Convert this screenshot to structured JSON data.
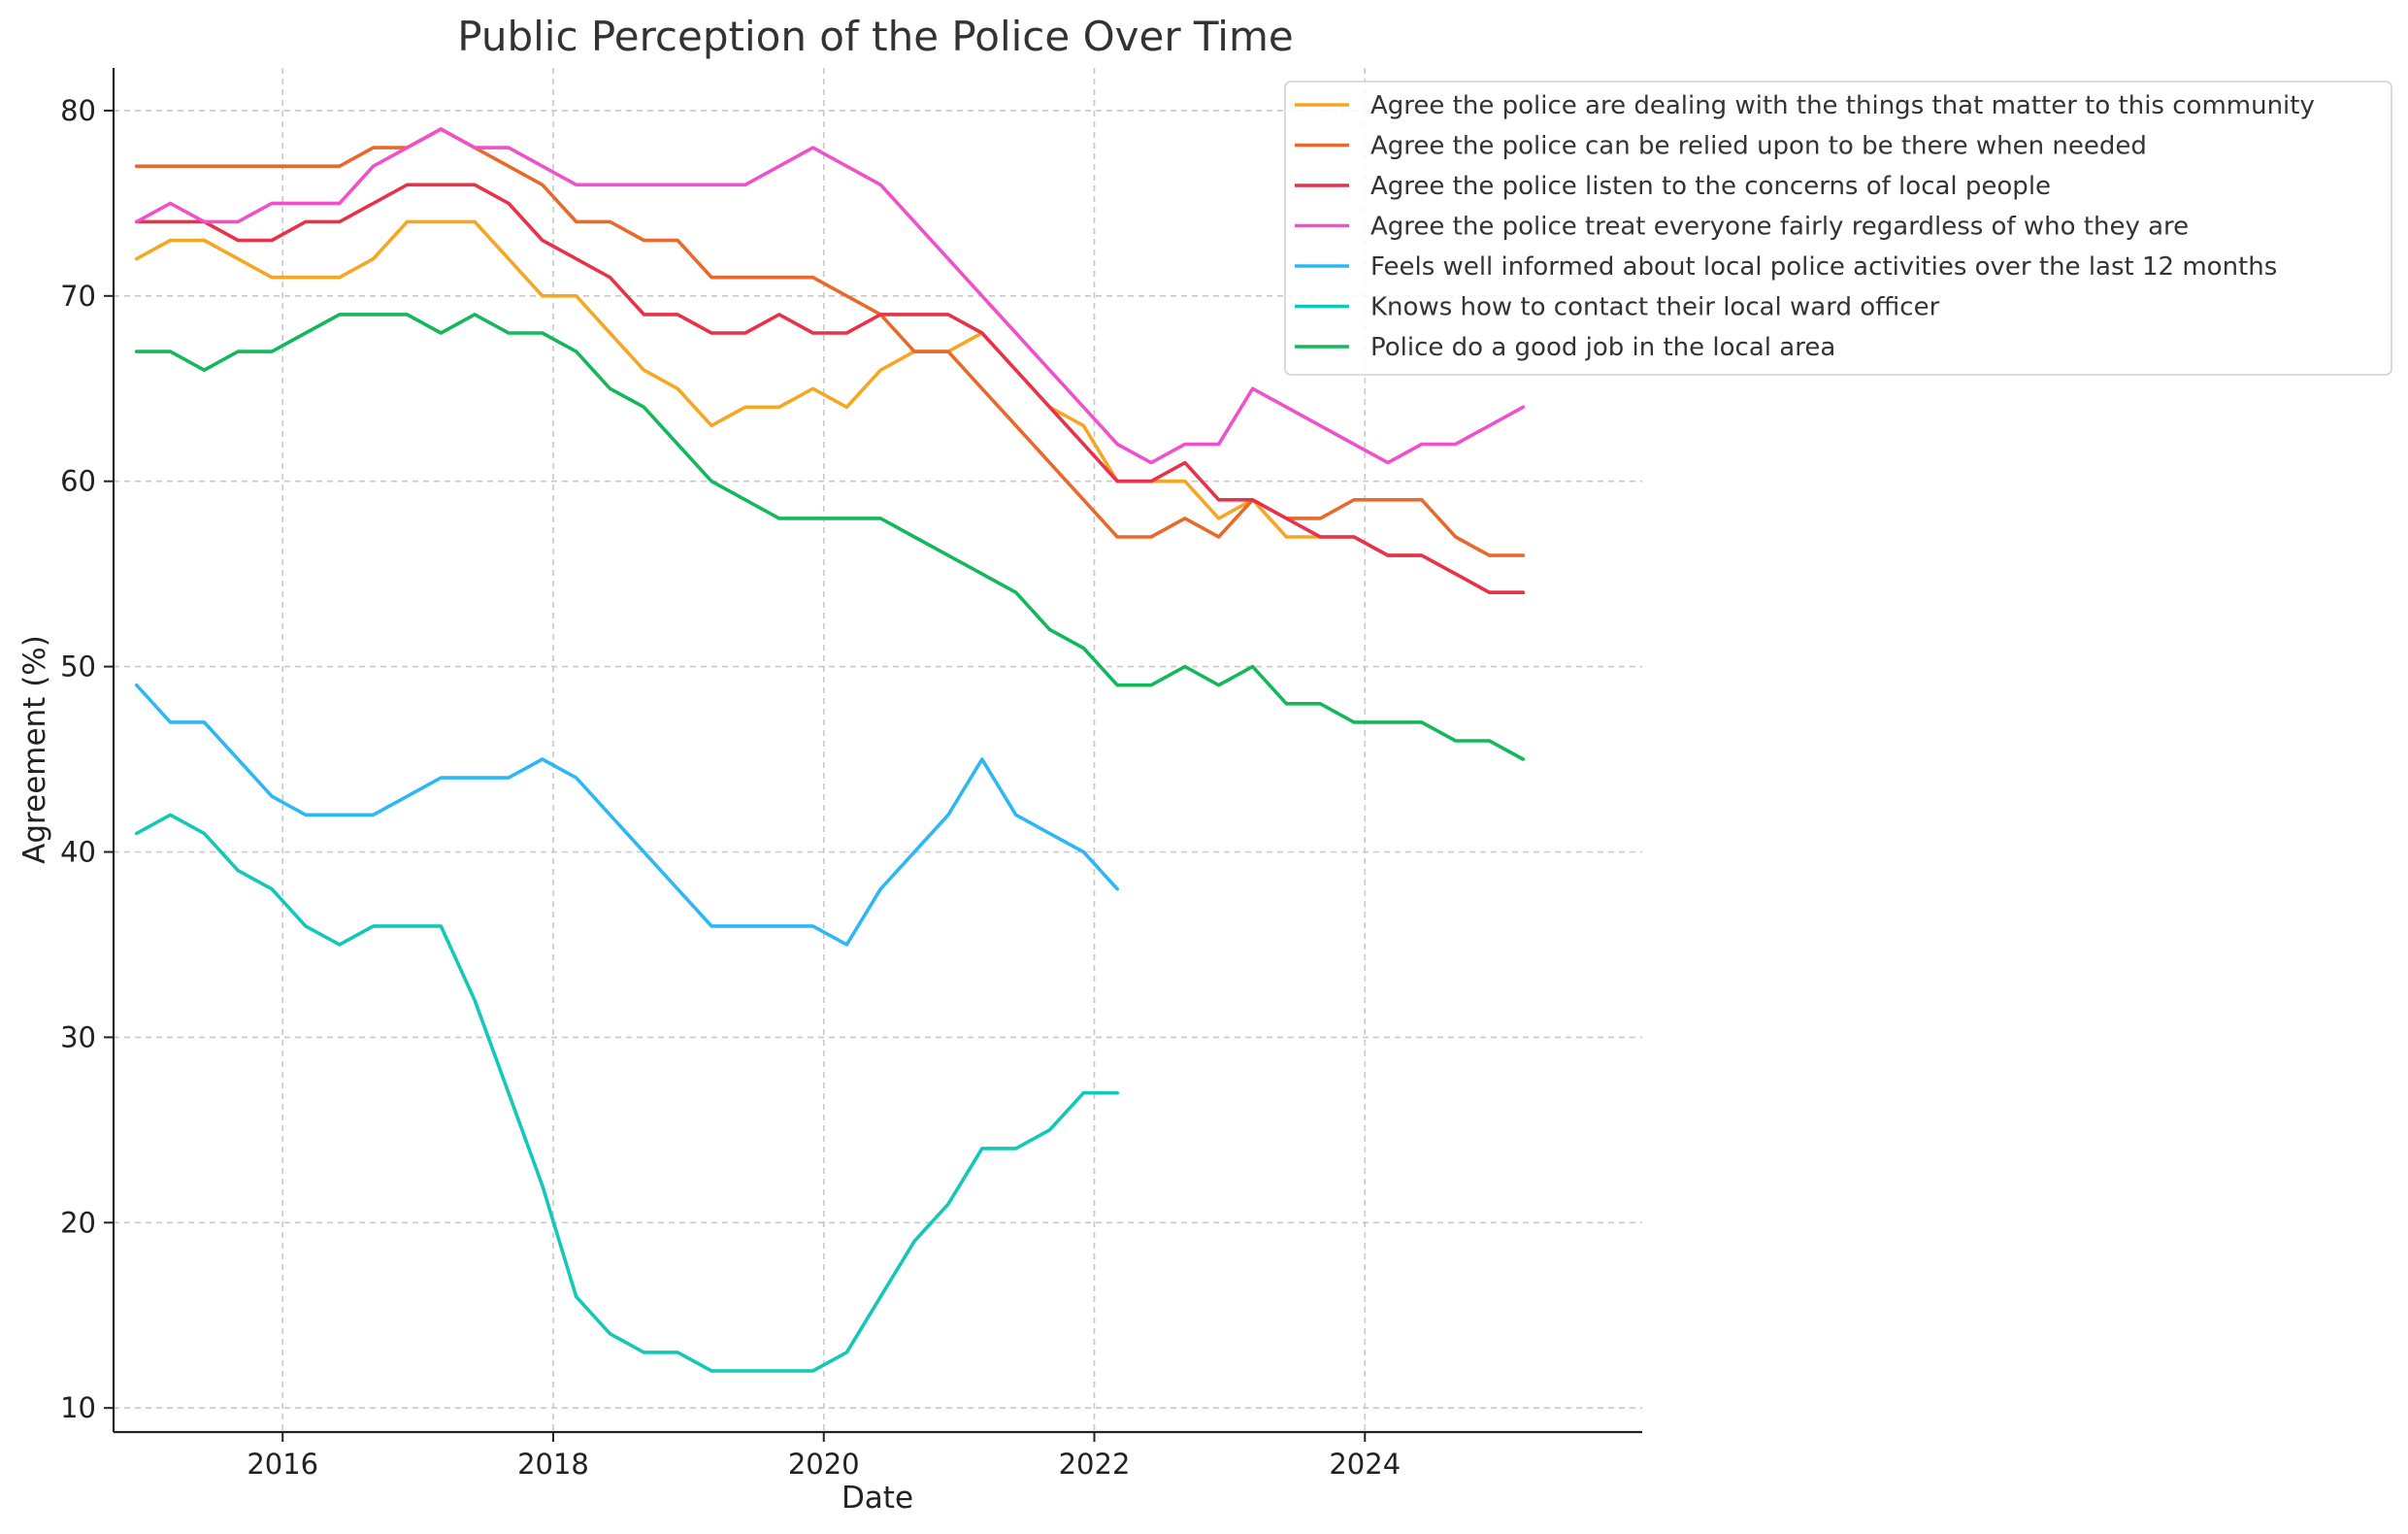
{
  "chart_data": {
    "type": "line",
    "title": "Public Perception of the Police Over Time",
    "xlabel": "Date",
    "ylabel": "Agreement (%)",
    "xlim": [
      2014.75,
      2026.05
    ],
    "ylim": [
      8.7,
      82.3
    ],
    "x_ticks": [
      2016,
      2018,
      2020,
      2022,
      2024
    ],
    "y_ticks": [
      10,
      20,
      30,
      40,
      50,
      60,
      70,
      80
    ],
    "grid": true,
    "legend_position": "top-right",
    "series": [
      {
        "name": "Agree the police are dealing with the things that matter to this community",
        "color": "#F5A623",
        "x": [
          2014.92,
          2015.17,
          2015.42,
          2015.67,
          2015.92,
          2016.17,
          2016.42,
          2016.67,
          2016.92,
          2017.17,
          2017.42,
          2017.67,
          2017.92,
          2018.17,
          2018.42,
          2018.67,
          2018.92,
          2019.17,
          2019.42,
          2019.67,
          2019.92,
          2020.17,
          2020.42,
          2020.67,
          2020.92,
          2021.17,
          2021.42,
          2021.67,
          2021.92,
          2022.17,
          2022.42,
          2022.67,
          2022.92,
          2023.17,
          2023.42,
          2023.67,
          2023.92,
          2024.17,
          2024.42,
          2024.67,
          2024.92,
          2025.17
        ],
        "y": [
          72,
          73,
          73,
          72,
          71,
          71,
          71,
          72,
          74,
          74,
          74,
          72,
          70,
          70,
          68,
          66,
          65,
          63,
          64,
          64,
          65,
          64,
          66,
          67,
          67,
          68,
          66,
          64,
          63,
          60,
          60,
          60,
          58,
          59,
          57,
          57,
          57,
          56,
          56,
          55,
          54,
          54
        ]
      },
      {
        "name": "Agree the police can be relied upon to be there when needed",
        "color": "#E8692A",
        "x": [
          2014.92,
          2015.17,
          2015.42,
          2015.67,
          2015.92,
          2016.17,
          2016.42,
          2016.67,
          2016.92,
          2017.17,
          2017.42,
          2017.67,
          2017.92,
          2018.17,
          2018.42,
          2018.67,
          2018.92,
          2019.17,
          2019.42,
          2019.67,
          2019.92,
          2020.17,
          2020.42,
          2020.67,
          2020.92,
          2021.17,
          2021.42,
          2021.67,
          2021.92,
          2022.17,
          2022.42,
          2022.67,
          2022.92,
          2023.17,
          2023.42,
          2023.67,
          2023.92,
          2024.17,
          2024.42,
          2024.67,
          2024.92,
          2025.17
        ],
        "y": [
          77,
          77,
          77,
          77,
          77,
          77,
          77,
          78,
          78,
          79,
          78,
          77,
          76,
          74,
          74,
          73,
          73,
          71,
          71,
          71,
          71,
          70,
          69,
          67,
          67,
          65,
          63,
          61,
          59,
          57,
          57,
          58,
          57,
          59,
          58,
          58,
          59,
          59,
          59,
          57,
          56,
          56
        ]
      },
      {
        "name": "Agree the police listen to the concerns of local people",
        "color": "#E8324A",
        "x": [
          2014.92,
          2015.17,
          2015.42,
          2015.67,
          2015.92,
          2016.17,
          2016.42,
          2016.67,
          2016.92,
          2017.17,
          2017.42,
          2017.67,
          2017.92,
          2018.17,
          2018.42,
          2018.67,
          2018.92,
          2019.17,
          2019.42,
          2019.67,
          2019.92,
          2020.17,
          2020.42,
          2020.67,
          2020.92,
          2021.17,
          2021.42,
          2021.67,
          2021.92,
          2022.17,
          2022.42,
          2022.67,
          2022.92,
          2023.17,
          2023.42,
          2023.67,
          2023.92,
          2024.17,
          2024.42,
          2024.67,
          2024.92,
          2025.17
        ],
        "y": [
          74,
          74,
          74,
          73,
          73,
          74,
          74,
          75,
          76,
          76,
          76,
          75,
          73,
          72,
          71,
          69,
          69,
          68,
          68,
          69,
          68,
          68,
          69,
          69,
          69,
          68,
          66,
          64,
          62,
          60,
          60,
          61,
          59,
          59,
          58,
          57,
          57,
          56,
          56,
          55,
          54,
          54
        ]
      },
      {
        "name": "Agree the police treat everyone fairly regardless of who they are",
        "color": "#F050C8",
        "x": [
          2014.92,
          2015.17,
          2015.42,
          2015.67,
          2015.92,
          2016.17,
          2016.42,
          2016.67,
          2016.92,
          2017.17,
          2017.42,
          2017.67,
          2017.92,
          2018.17,
          2018.42,
          2018.67,
          2018.92,
          2019.17,
          2019.42,
          2019.67,
          2019.92,
          2020.17,
          2020.42,
          2020.67,
          2020.92,
          2021.17,
          2021.42,
          2021.67,
          2021.92,
          2022.17,
          2022.42,
          2022.67,
          2022.92,
          2023.17,
          2023.42,
          2023.67,
          2023.92,
          2024.17,
          2024.42,
          2024.67,
          2024.92,
          2025.17
        ],
        "y": [
          74,
          75,
          74,
          74,
          75,
          75,
          75,
          77,
          78,
          79,
          78,
          78,
          77,
          76,
          76,
          76,
          76,
          76,
          76,
          77,
          78,
          77,
          76,
          74,
          72,
          70,
          68,
          66,
          64,
          62,
          61,
          62,
          62,
          65,
          64,
          63,
          62,
          61,
          62,
          62,
          63,
          64
        ]
      },
      {
        "name": "Feels well informed about local police activities over the last 12 months",
        "color": "#2DB7F5",
        "x": [
          2014.92,
          2015.17,
          2015.42,
          2015.67,
          2015.92,
          2016.17,
          2016.42,
          2016.67,
          2016.92,
          2017.17,
          2017.42,
          2017.67,
          2017.92,
          2018.17,
          2018.42,
          2018.67,
          2018.92,
          2019.17,
          2019.42,
          2019.67,
          2019.92,
          2020.17,
          2020.42,
          2020.67,
          2020.92,
          2021.17,
          2021.42,
          2021.67,
          2021.92,
          2022.17
        ],
        "y": [
          49,
          47,
          47,
          45,
          43,
          42,
          42,
          42,
          43,
          44,
          44,
          44,
          45,
          44,
          42,
          40,
          38,
          36,
          36,
          36,
          36,
          35,
          38,
          40,
          42,
          45,
          42,
          41,
          40,
          38
        ]
      },
      {
        "name": "Knows how to contact their local ward officer",
        "color": "#12C8B8",
        "x": [
          2014.92,
          2015.17,
          2015.42,
          2015.67,
          2015.92,
          2016.17,
          2016.42,
          2016.67,
          2016.92,
          2017.17,
          2017.42,
          2017.67,
          2017.92,
          2018.17,
          2018.42,
          2018.67,
          2018.92,
          2019.17,
          2019.42,
          2019.67,
          2019.92,
          2020.17,
          2020.42,
          2020.67,
          2020.92,
          2021.17,
          2021.42,
          2021.67,
          2021.92,
          2022.17
        ],
        "y": [
          41,
          42,
          41,
          39,
          38,
          36,
          35,
          36,
          36,
          36,
          32,
          27,
          22,
          16,
          14,
          13,
          13,
          12,
          12,
          12,
          12,
          13,
          16,
          19,
          21,
          24,
          24,
          25,
          27,
          27
        ]
      },
      {
        "name": "Police do a good job in the local area",
        "color": "#12B85A",
        "x": [
          2014.92,
          2015.17,
          2015.42,
          2015.67,
          2015.92,
          2016.17,
          2016.42,
          2016.67,
          2016.92,
          2017.17,
          2017.42,
          2017.67,
          2017.92,
          2018.17,
          2018.42,
          2018.67,
          2018.92,
          2019.17,
          2019.42,
          2019.67,
          2019.92,
          2020.17,
          2020.42,
          2020.67,
          2020.92,
          2021.17,
          2021.42,
          2021.67,
          2021.92,
          2022.17,
          2022.42,
          2022.67,
          2022.92,
          2023.17,
          2023.42,
          2023.67,
          2023.92,
          2024.17,
          2024.42,
          2024.67,
          2024.92,
          2025.17
        ],
        "y": [
          67,
          67,
          66,
          67,
          67,
          68,
          69,
          69,
          69,
          68,
          69,
          68,
          68,
          67,
          65,
          64,
          62,
          60,
          59,
          58,
          58,
          58,
          58,
          57,
          56,
          55,
          54,
          52,
          51,
          49,
          49,
          50,
          49,
          50,
          48,
          48,
          47,
          47,
          47,
          46,
          46,
          45
        ]
      }
    ]
  }
}
